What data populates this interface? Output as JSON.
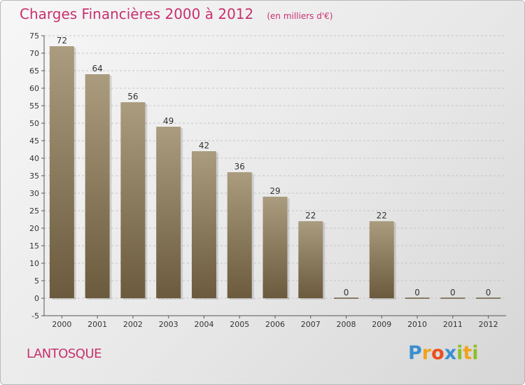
{
  "title": "Charges Financières 2000 à 2012",
  "subtitle": "(en milliers d'€)",
  "commune": "LANTOSQUE",
  "logo": {
    "text": "Proxiti",
    "letters": [
      {
        "ch": "P",
        "color": "#3a8fd0"
      },
      {
        "ch": "r",
        "color": "#f2a21d"
      },
      {
        "ch": "o",
        "color": "#e94f1d"
      },
      {
        "ch": "x",
        "color": "#3a8fd0"
      },
      {
        "ch": "i",
        "color": "#8cbf2a"
      },
      {
        "ch": "t",
        "color": "#f2a21d"
      },
      {
        "ch": "i",
        "color": "#8cbf2a"
      }
    ]
  },
  "colors": {
    "title": "#c8306e",
    "bar_top": "#ab9c7f",
    "bar_bottom": "#6b5a3d",
    "grid": "#c4c4c4",
    "axis": "#555555"
  },
  "chart_data": {
    "type": "bar",
    "categories": [
      "2000",
      "2001",
      "2002",
      "2003",
      "2004",
      "2005",
      "2006",
      "2007",
      "2008",
      "2009",
      "2010",
      "2011",
      "2012"
    ],
    "values": [
      72,
      64,
      56,
      49,
      42,
      36,
      29,
      22,
      0,
      22,
      0,
      0,
      0
    ],
    "ylim": [
      -5,
      75
    ],
    "yticks": [
      -5,
      0,
      5,
      10,
      15,
      20,
      25,
      30,
      35,
      40,
      45,
      50,
      55,
      60,
      65,
      70,
      75
    ],
    "grid": "horizontal dashed",
    "legend": "none"
  }
}
